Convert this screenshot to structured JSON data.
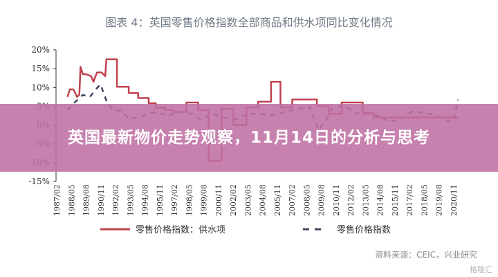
{
  "banner": {
    "title": "英国最新物价走势观察，11月14日的分析与思考"
  },
  "watermark": "格隆汇",
  "chart_data": {
    "type": "line",
    "title": "图表 4：英国零售价格指数全部商品和供水项同比变化情况",
    "source": "资料来源：CEIC，兴业研究",
    "ylim": [
      -15,
      20
    ],
    "xlim": [
      1987.08,
      2020.83
    ],
    "y_ticks": [
      "20%",
      "15%",
      "10%",
      "5%",
      "0%",
      "-5%",
      "-10%",
      "-15%"
    ],
    "y_tick_values": [
      20,
      15,
      10,
      5,
      0,
      -5,
      -10,
      -15
    ],
    "x_ticks": [
      "1987/02",
      "1988/05",
      "1989/08",
      "1990/11",
      "1992/02",
      "1993/05",
      "1994/08",
      "1995/11",
      "1997/02",
      "1998/05",
      "1999/08",
      "2000/11",
      "2002/02",
      "2003/05",
      "2004/08",
      "2005/11",
      "2007/02",
      "2008/05",
      "2009/08",
      "2010/11",
      "2012/02",
      "2013/05",
      "2014/08",
      "2015/11",
      "2017/02",
      "2018/05",
      "2019/08",
      "2020/11"
    ],
    "legend": "bottom",
    "series": [
      {
        "name": "零售价格指数：供水项",
        "color": "#c0424f",
        "style": "solid",
        "x": [
          1988.0,
          1988.2,
          1988.5,
          1988.8,
          1989.0,
          1989.1,
          1989.3,
          1989.6,
          1990.0,
          1990.2,
          1990.5,
          1990.9,
          1991.2,
          1991.3,
          1992.2,
          1992.2,
          1993.2,
          1993.2,
          1994.0,
          1994.0,
          1994.9,
          1994.9,
          1995.5,
          1995.5,
          1996.3,
          1996.3,
          1997.0,
          1997.0,
          1998.1,
          1998.1,
          1999.1,
          1999.1,
          2000.0,
          2000.0,
          2001.1,
          2001.1,
          2002.1,
          2002.1,
          2003.2,
          2003.2,
          2004.2,
          2004.2,
          2005.3,
          2005.3,
          2006.1,
          2006.1,
          2007.1,
          2007.1,
          2009.2,
          2009.2,
          2010.2,
          2010.2,
          2011.3,
          2011.3,
          2013.1,
          2013.1,
          2014.0,
          2014.0,
          2020.3,
          2021.2
        ],
        "y": [
          7.5,
          9.5,
          9.5,
          7.5,
          8.0,
          15.5,
          13.5,
          13.5,
          13.0,
          11.5,
          14.0,
          14.0,
          13.0,
          17.5,
          17.5,
          10.2,
          10.2,
          8.5,
          8.5,
          7.2,
          7.2,
          5.8,
          5.8,
          4.6,
          4.6,
          4.0,
          4.0,
          3.5,
          3.5,
          6.0,
          6.0,
          4.0,
          4.0,
          -9.5,
          -9.5,
          4.3,
          4.3,
          0.0,
          0.0,
          4.7,
          4.7,
          6.2,
          6.2,
          11.5,
          11.5,
          4.7,
          4.7,
          6.8,
          6.8,
          5.0,
          5.0,
          3.0,
          3.0,
          6.0,
          6.0,
          3.2,
          3.2,
          2.0,
          2.0,
          2.0
        ]
      },
      {
        "name": "零售价格指数",
        "color": "#3d4660",
        "style": "dashed",
        "x": [
          1988.0,
          1988.6,
          1989.3,
          1989.9,
          1990.4,
          1990.8,
          1991.3,
          1991.8,
          1992.5,
          1993.3,
          1994.5,
          1995.5,
          1996.5,
          1997.5,
          1998.5,
          1999.3,
          2000.3,
          2001.3,
          2002.3,
          2003.3,
          2004.3,
          2005.3,
          2006.3,
          2007.3,
          2008.6,
          2009.3,
          2009.8,
          2010.5,
          2011.5,
          2012.5,
          2013.5,
          2014.5,
          2015.3,
          2016.3,
          2017.3,
          2018.3,
          2019.3,
          2020.3,
          2020.8,
          2021.2
        ],
        "y": [
          4.0,
          6.0,
          8.0,
          7.5,
          9.5,
          10.8,
          6.5,
          4.0,
          3.8,
          1.5,
          2.5,
          3.5,
          2.5,
          3.5,
          3.0,
          1.5,
          3.0,
          2.0,
          1.5,
          3.0,
          3.0,
          2.6,
          3.3,
          4.2,
          4.8,
          -1.3,
          0.5,
          4.5,
          5.2,
          3.2,
          3.0,
          2.4,
          0.9,
          1.5,
          3.6,
          3.3,
          2.6,
          1.2,
          1.0,
          6.8
        ]
      }
    ]
  }
}
